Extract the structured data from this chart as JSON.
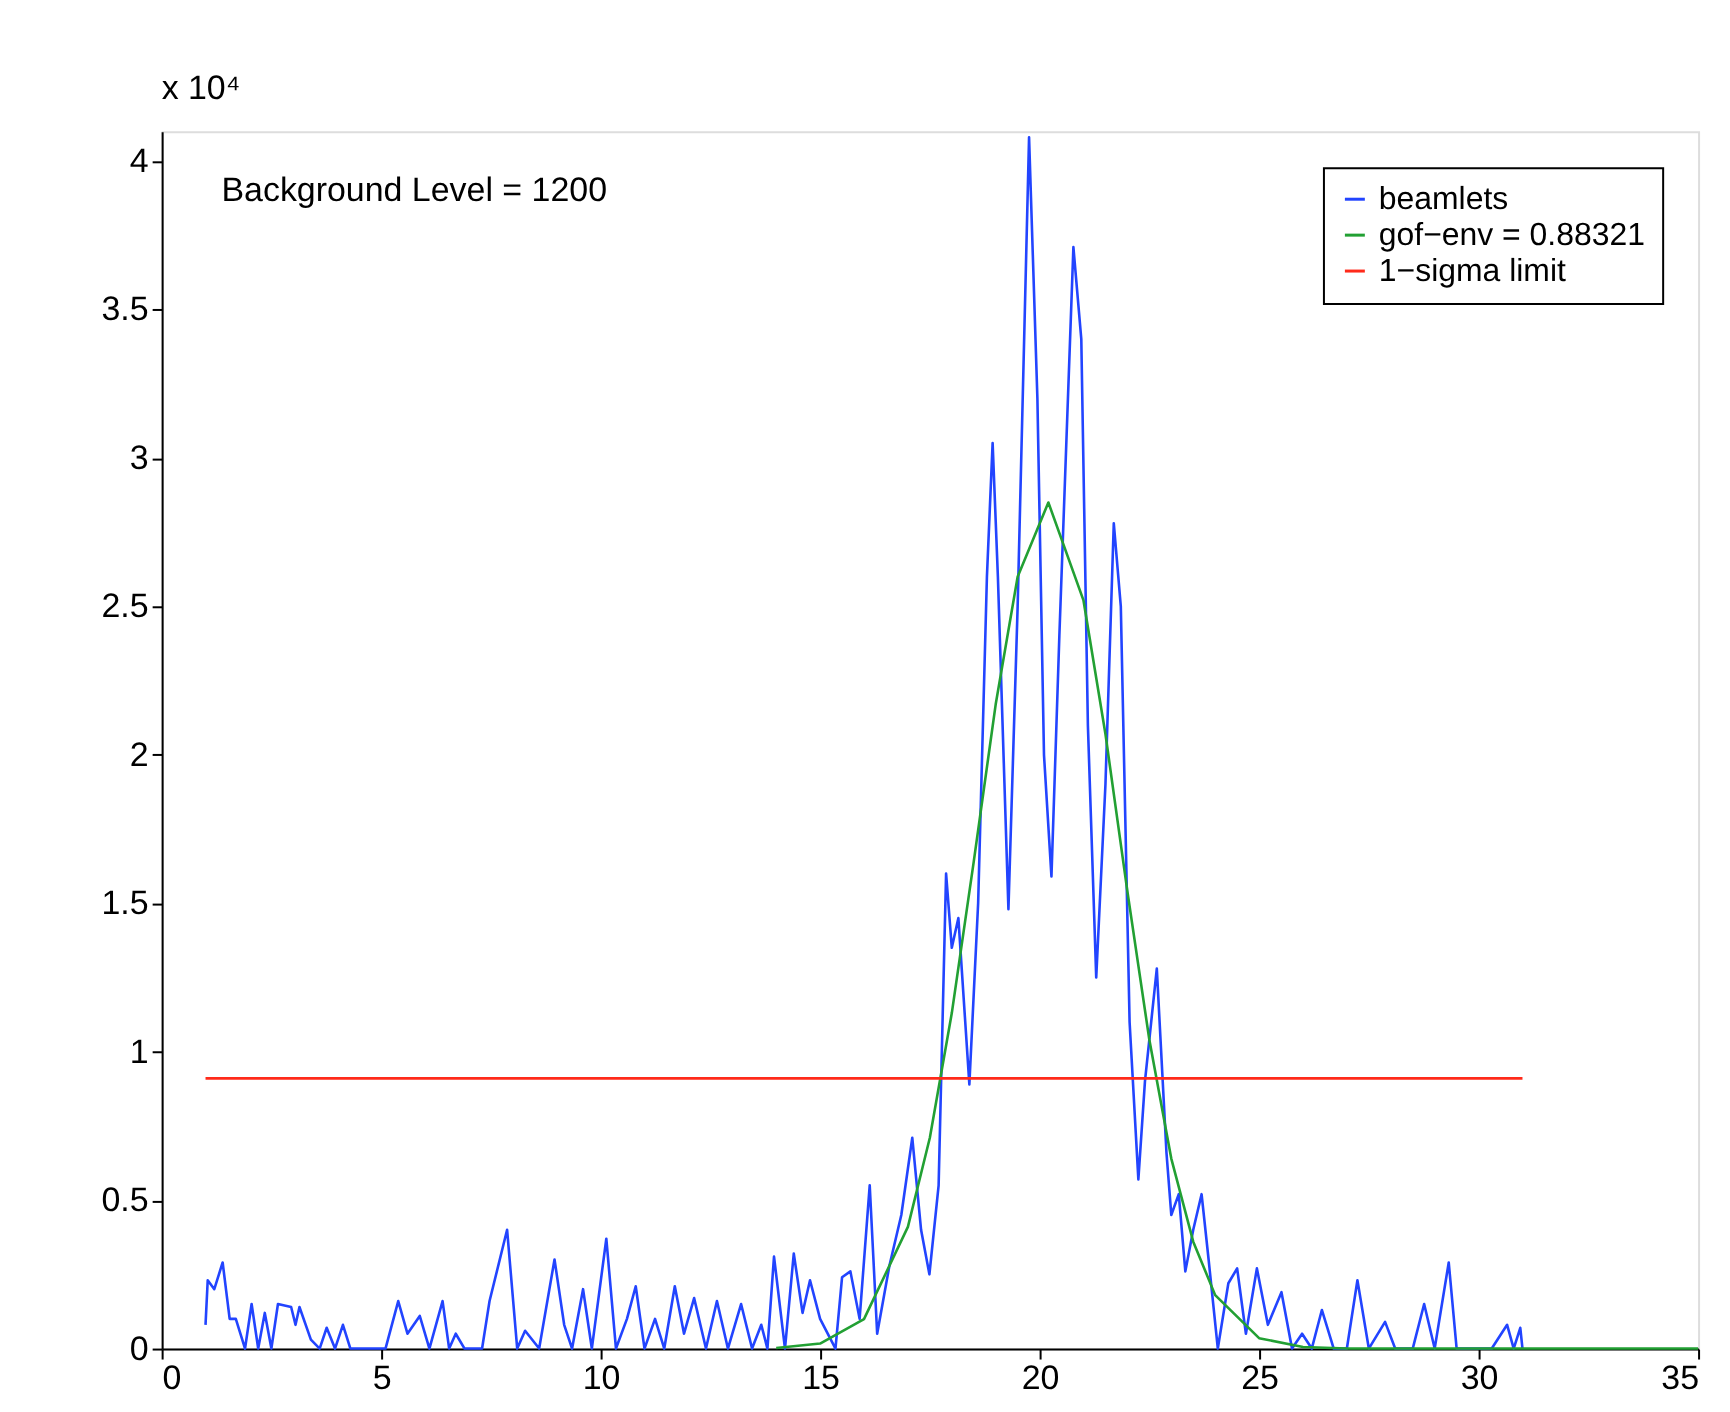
{
  "chart_data": {
    "type": "line",
    "annotations": [
      "x 10⁴",
      "Background Level = 1200"
    ],
    "xlim": [
      0,
      35
    ],
    "ylim": [
      0,
      4.1
    ],
    "xticks": [
      0,
      5,
      10,
      15,
      20,
      25,
      30,
      35
    ],
    "yticks": [
      0,
      0.5,
      1,
      1.5,
      2,
      2.5,
      3,
      3.5,
      4
    ],
    "grid": false,
    "legend": "top right",
    "line_style": "solid",
    "marker": "none",
    "series": [
      {
        "name": "beamlets",
        "color": "#2244ff",
        "x": [
          1.0,
          1.05,
          1.2,
          1.39,
          1.55,
          1.69,
          1.9,
          2.05,
          2.2,
          2.35,
          2.5,
          2.65,
          2.95,
          3.05,
          3.14,
          3.4,
          3.6,
          3.76,
          3.95,
          4.13,
          4.3,
          5.1,
          5.39,
          5.6,
          5.88,
          6.1,
          6.4,
          6.55,
          6.7,
          6.9,
          7.3,
          7.47,
          7.87,
          8.1,
          8.28,
          8.6,
          8.95,
          9.17,
          9.35,
          9.6,
          9.8,
          10.13,
          10.35,
          10.6,
          10.8,
          11.0,
          11.24,
          11.45,
          11.69,
          11.9,
          12.13,
          12.4,
          12.65,
          12.9,
          13.2,
          13.45,
          13.66,
          13.8,
          13.95,
          14.2,
          14.4,
          14.6,
          14.77,
          15.0,
          15.35,
          15.5,
          15.69,
          15.9,
          16.13,
          16.3,
          16.58,
          16.85,
          17.1,
          17.3,
          17.49,
          17.7,
          17.87,
          18.0,
          18.15,
          18.4,
          18.6,
          18.8,
          18.93,
          19.05,
          19.29,
          19.5,
          19.76,
          19.95,
          20.1,
          20.27,
          20.45,
          20.77,
          20.95,
          21.1,
          21.29,
          21.5,
          21.69,
          21.85,
          22.05,
          22.25,
          22.4,
          22.67,
          22.89,
          23.0,
          23.17,
          23.32,
          23.5,
          23.69,
          23.85,
          24.06,
          24.3,
          24.5,
          24.7,
          24.95,
          25.2,
          25.51,
          25.75,
          25.98,
          26.2,
          26.43,
          26.7,
          27.0,
          27.24,
          27.5,
          27.87,
          28.1,
          28.5,
          28.76,
          29.0,
          29.32,
          29.5,
          30.0,
          30.3,
          30.65,
          30.8,
          30.95,
          31.0
        ],
        "values": [
          0.08,
          0.23,
          0.2,
          0.29,
          0.1,
          0.1,
          0.0,
          0.15,
          0.0,
          0.12,
          0.0,
          0.15,
          0.14,
          0.08,
          0.14,
          0.03,
          0.0,
          0.07,
          0.0,
          0.08,
          0.0,
          0.0,
          0.16,
          0.05,
          0.11,
          0.0,
          0.16,
          0.0,
          0.05,
          0.0,
          0.0,
          0.16,
          0.4,
          0.0,
          0.06,
          0.0,
          0.3,
          0.08,
          0.0,
          0.2,
          0.0,
          0.37,
          0.0,
          0.1,
          0.21,
          0.0,
          0.1,
          0.0,
          0.21,
          0.05,
          0.17,
          0.0,
          0.16,
          0.0,
          0.15,
          0.0,
          0.08,
          0.0,
          0.31,
          0.0,
          0.32,
          0.12,
          0.23,
          0.1,
          0.0,
          0.24,
          0.26,
          0.1,
          0.55,
          0.05,
          0.28,
          0.45,
          0.71,
          0.4,
          0.25,
          0.55,
          1.6,
          1.35,
          1.45,
          0.89,
          1.5,
          2.6,
          3.05,
          2.6,
          1.48,
          2.5,
          4.08,
          3.2,
          2.0,
          1.59,
          2.4,
          3.71,
          3.4,
          2.1,
          1.25,
          1.9,
          2.78,
          2.5,
          1.1,
          0.57,
          0.9,
          1.28,
          0.66,
          0.45,
          0.52,
          0.26,
          0.4,
          0.52,
          0.3,
          0.0,
          0.22,
          0.27,
          0.05,
          0.27,
          0.08,
          0.19,
          0.0,
          0.05,
          0.0,
          0.13,
          0.0,
          0.0,
          0.23,
          0.0,
          0.09,
          0.0,
          0.0,
          0.15,
          0.0,
          0.29,
          0.0,
          0.0,
          0.0,
          0.08,
          0.0,
          0.07,
          0.0
        ]
      },
      {
        "name": "gof−env = 0.88321",
        "color": "#22a033",
        "x": [
          14,
          15,
          16,
          17,
          17.5,
          18,
          18.5,
          19,
          19.5,
          20.2,
          21,
          21.5,
          22,
          22.5,
          23,
          23.5,
          24,
          25,
          26,
          27,
          35
        ],
        "values": [
          0.002,
          0.017,
          0.099,
          0.41,
          0.71,
          1.13,
          1.64,
          2.17,
          2.6,
          2.85,
          2.52,
          2.07,
          1.54,
          1.04,
          0.64,
          0.36,
          0.18,
          0.035,
          0.005,
          0.0,
          0.0
        ]
      },
      {
        "name": "1−sigma limit",
        "color": "#ff2a1a",
        "x": [
          1,
          31
        ],
        "values": [
          0.91,
          0.91
        ]
      }
    ]
  }
}
